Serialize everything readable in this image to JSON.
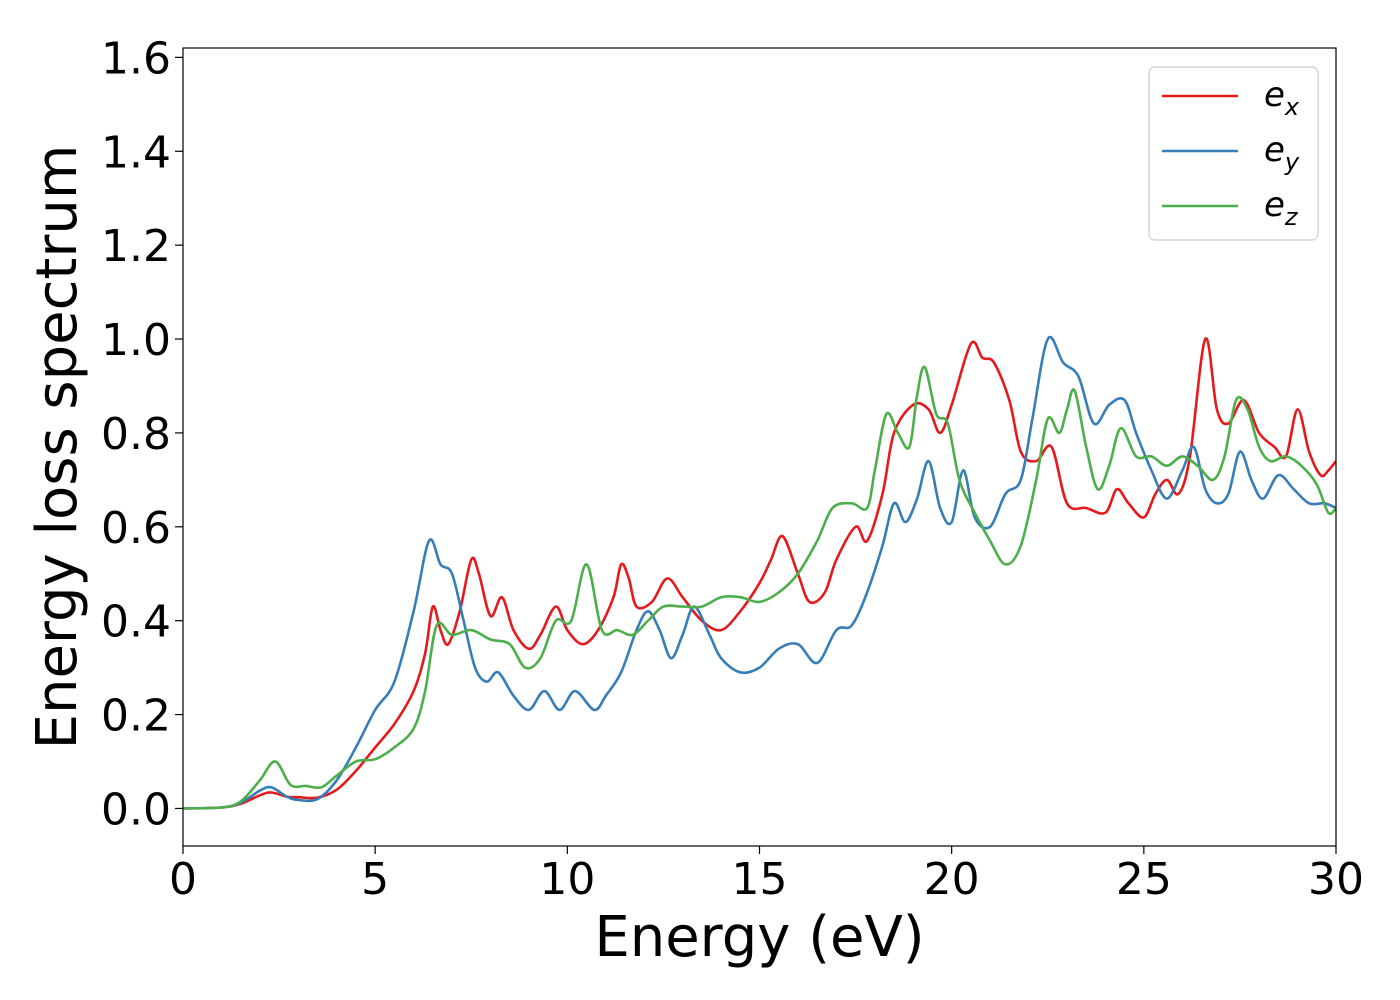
{
  "chart_data": {
    "type": "line",
    "xlabel": "Energy (eV)",
    "ylabel": "Energy loss spectrum",
    "xlim": [
      0,
      30
    ],
    "ylim": [
      -0.08,
      1.62
    ],
    "xticks": [
      0,
      5,
      10,
      15,
      20,
      25,
      30
    ],
    "xtick_labels": [
      "0",
      "5",
      "10",
      "15",
      "20",
      "25",
      "30"
    ],
    "yticks": [
      0.0,
      0.2,
      0.4,
      0.6,
      0.8,
      1.0,
      1.2,
      1.4,
      1.6
    ],
    "ytick_labels": [
      "0.0",
      "0.2",
      "0.4",
      "0.6",
      "0.8",
      "1.0",
      "1.2",
      "1.4",
      "1.6"
    ],
    "grid": false,
    "legend_position": "top-right",
    "series": [
      {
        "name": "e_x",
        "legend_base": "e",
        "legend_sub": "x",
        "color": "#e41a1c",
        "points": [
          [
            0,
            0.0
          ],
          [
            1.0,
            0.002
          ],
          [
            1.5,
            0.01
          ],
          [
            2.0,
            0.028
          ],
          [
            2.3,
            0.034
          ],
          [
            2.7,
            0.025
          ],
          [
            3.0,
            0.024
          ],
          [
            3.5,
            0.023
          ],
          [
            4.0,
            0.04
          ],
          [
            4.5,
            0.08
          ],
          [
            5.0,
            0.13
          ],
          [
            5.5,
            0.18
          ],
          [
            6.0,
            0.25
          ],
          [
            6.3,
            0.33
          ],
          [
            6.5,
            0.43
          ],
          [
            6.7,
            0.38
          ],
          [
            6.9,
            0.35
          ],
          [
            7.2,
            0.42
          ],
          [
            7.5,
            0.53
          ],
          [
            7.7,
            0.5
          ],
          [
            8.0,
            0.41
          ],
          [
            8.3,
            0.45
          ],
          [
            8.6,
            0.38
          ],
          [
            9.0,
            0.34
          ],
          [
            9.3,
            0.37
          ],
          [
            9.7,
            0.43
          ],
          [
            10.0,
            0.38
          ],
          [
            10.4,
            0.35
          ],
          [
            10.8,
            0.38
          ],
          [
            11.2,
            0.45
          ],
          [
            11.4,
            0.52
          ],
          [
            11.6,
            0.49
          ],
          [
            11.8,
            0.43
          ],
          [
            12.2,
            0.44
          ],
          [
            12.6,
            0.49
          ],
          [
            13.0,
            0.45
          ],
          [
            13.5,
            0.4
          ],
          [
            14.0,
            0.38
          ],
          [
            14.5,
            0.42
          ],
          [
            15.0,
            0.48
          ],
          [
            15.3,
            0.53
          ],
          [
            15.6,
            0.58
          ],
          [
            16.0,
            0.5
          ],
          [
            16.3,
            0.44
          ],
          [
            16.7,
            0.46
          ],
          [
            17.0,
            0.53
          ],
          [
            17.5,
            0.6
          ],
          [
            17.8,
            0.57
          ],
          [
            18.2,
            0.67
          ],
          [
            18.5,
            0.8
          ],
          [
            19.0,
            0.86
          ],
          [
            19.4,
            0.85
          ],
          [
            19.7,
            0.8
          ],
          [
            20.0,
            0.86
          ],
          [
            20.5,
            0.99
          ],
          [
            20.8,
            0.96
          ],
          [
            21.1,
            0.95
          ],
          [
            21.5,
            0.87
          ],
          [
            21.8,
            0.76
          ],
          [
            22.2,
            0.74
          ],
          [
            22.6,
            0.77
          ],
          [
            23.0,
            0.65
          ],
          [
            23.5,
            0.64
          ],
          [
            24.0,
            0.63
          ],
          [
            24.3,
            0.68
          ],
          [
            24.6,
            0.65
          ],
          [
            25.0,
            0.62
          ],
          [
            25.3,
            0.67
          ],
          [
            25.6,
            0.7
          ],
          [
            25.9,
            0.67
          ],
          [
            26.2,
            0.75
          ],
          [
            26.6,
            1.0
          ],
          [
            26.9,
            0.85
          ],
          [
            27.2,
            0.82
          ],
          [
            27.6,
            0.87
          ],
          [
            28.0,
            0.8
          ],
          [
            28.4,
            0.77
          ],
          [
            28.7,
            0.75
          ],
          [
            29.0,
            0.85
          ],
          [
            29.3,
            0.76
          ],
          [
            29.6,
            0.71
          ],
          [
            29.8,
            0.72
          ],
          [
            30.0,
            0.74
          ]
        ]
      },
      {
        "name": "e_y",
        "legend_base": "e",
        "legend_sub": "y",
        "color": "#377eb8",
        "points": [
          [
            0,
            0.0
          ],
          [
            1.0,
            0.002
          ],
          [
            1.5,
            0.012
          ],
          [
            2.0,
            0.038
          ],
          [
            2.3,
            0.045
          ],
          [
            2.7,
            0.025
          ],
          [
            3.0,
            0.018
          ],
          [
            3.5,
            0.02
          ],
          [
            4.0,
            0.06
          ],
          [
            4.5,
            0.13
          ],
          [
            5.0,
            0.21
          ],
          [
            5.5,
            0.27
          ],
          [
            6.0,
            0.42
          ],
          [
            6.4,
            0.57
          ],
          [
            6.7,
            0.52
          ],
          [
            7.0,
            0.5
          ],
          [
            7.3,
            0.4
          ],
          [
            7.6,
            0.3
          ],
          [
            7.9,
            0.27
          ],
          [
            8.2,
            0.29
          ],
          [
            8.6,
            0.24
          ],
          [
            9.0,
            0.21
          ],
          [
            9.4,
            0.25
          ],
          [
            9.8,
            0.21
          ],
          [
            10.2,
            0.25
          ],
          [
            10.7,
            0.21
          ],
          [
            11.0,
            0.24
          ],
          [
            11.4,
            0.29
          ],
          [
            11.8,
            0.38
          ],
          [
            12.1,
            0.42
          ],
          [
            12.4,
            0.38
          ],
          [
            12.7,
            0.32
          ],
          [
            13.0,
            0.37
          ],
          [
            13.3,
            0.43
          ],
          [
            13.7,
            0.37
          ],
          [
            14.0,
            0.32
          ],
          [
            14.5,
            0.29
          ],
          [
            15.0,
            0.3
          ],
          [
            15.5,
            0.34
          ],
          [
            16.0,
            0.35
          ],
          [
            16.5,
            0.31
          ],
          [
            17.0,
            0.38
          ],
          [
            17.4,
            0.39
          ],
          [
            17.8,
            0.46
          ],
          [
            18.2,
            0.56
          ],
          [
            18.5,
            0.65
          ],
          [
            18.8,
            0.61
          ],
          [
            19.1,
            0.66
          ],
          [
            19.4,
            0.74
          ],
          [
            19.7,
            0.64
          ],
          [
            20.0,
            0.61
          ],
          [
            20.3,
            0.72
          ],
          [
            20.6,
            0.62
          ],
          [
            21.0,
            0.6
          ],
          [
            21.4,
            0.67
          ],
          [
            21.8,
            0.7
          ],
          [
            22.1,
            0.83
          ],
          [
            22.5,
            1.0
          ],
          [
            22.9,
            0.95
          ],
          [
            23.3,
            0.92
          ],
          [
            23.7,
            0.82
          ],
          [
            24.1,
            0.86
          ],
          [
            24.5,
            0.87
          ],
          [
            24.8,
            0.8
          ],
          [
            25.2,
            0.72
          ],
          [
            25.6,
            0.66
          ],
          [
            26.0,
            0.72
          ],
          [
            26.3,
            0.77
          ],
          [
            26.6,
            0.68
          ],
          [
            26.9,
            0.65
          ],
          [
            27.2,
            0.67
          ],
          [
            27.5,
            0.76
          ],
          [
            27.8,
            0.7
          ],
          [
            28.1,
            0.66
          ],
          [
            28.5,
            0.71
          ],
          [
            28.9,
            0.68
          ],
          [
            29.3,
            0.65
          ],
          [
            29.7,
            0.65
          ],
          [
            30.0,
            0.64
          ]
        ]
      },
      {
        "name": "e_z",
        "legend_base": "e",
        "legend_sub": "z",
        "color": "#4daf4a",
        "points": [
          [
            0,
            0.0
          ],
          [
            1.0,
            0.002
          ],
          [
            1.5,
            0.015
          ],
          [
            2.0,
            0.06
          ],
          [
            2.4,
            0.1
          ],
          [
            2.8,
            0.05
          ],
          [
            3.2,
            0.048
          ],
          [
            3.6,
            0.045
          ],
          [
            4.0,
            0.07
          ],
          [
            4.5,
            0.1
          ],
          [
            5.0,
            0.105
          ],
          [
            5.5,
            0.13
          ],
          [
            6.0,
            0.17
          ],
          [
            6.3,
            0.25
          ],
          [
            6.6,
            0.39
          ],
          [
            7.0,
            0.37
          ],
          [
            7.5,
            0.38
          ],
          [
            8.0,
            0.36
          ],
          [
            8.5,
            0.35
          ],
          [
            8.9,
            0.3
          ],
          [
            9.3,
            0.32
          ],
          [
            9.7,
            0.4
          ],
          [
            10.1,
            0.4
          ],
          [
            10.5,
            0.52
          ],
          [
            10.9,
            0.38
          ],
          [
            11.3,
            0.38
          ],
          [
            11.7,
            0.37
          ],
          [
            12.1,
            0.4
          ],
          [
            12.5,
            0.43
          ],
          [
            13.0,
            0.43
          ],
          [
            13.5,
            0.43
          ],
          [
            14.0,
            0.45
          ],
          [
            14.5,
            0.45
          ],
          [
            15.0,
            0.44
          ],
          [
            15.5,
            0.46
          ],
          [
            16.0,
            0.5
          ],
          [
            16.5,
            0.57
          ],
          [
            16.9,
            0.64
          ],
          [
            17.4,
            0.65
          ],
          [
            17.8,
            0.64
          ],
          [
            18.0,
            0.72
          ],
          [
            18.3,
            0.84
          ],
          [
            18.6,
            0.8
          ],
          [
            18.9,
            0.77
          ],
          [
            19.1,
            0.88
          ],
          [
            19.3,
            0.94
          ],
          [
            19.6,
            0.84
          ],
          [
            19.9,
            0.82
          ],
          [
            20.2,
            0.7
          ],
          [
            20.6,
            0.63
          ],
          [
            21.0,
            0.57
          ],
          [
            21.4,
            0.52
          ],
          [
            21.8,
            0.56
          ],
          [
            22.2,
            0.7
          ],
          [
            22.5,
            0.83
          ],
          [
            22.8,
            0.8
          ],
          [
            23.0,
            0.85
          ],
          [
            23.2,
            0.89
          ],
          [
            23.5,
            0.77
          ],
          [
            23.8,
            0.68
          ],
          [
            24.1,
            0.73
          ],
          [
            24.4,
            0.81
          ],
          [
            24.8,
            0.75
          ],
          [
            25.2,
            0.75
          ],
          [
            25.6,
            0.73
          ],
          [
            26.0,
            0.75
          ],
          [
            26.4,
            0.73
          ],
          [
            26.8,
            0.7
          ],
          [
            27.1,
            0.75
          ],
          [
            27.4,
            0.87
          ],
          [
            27.7,
            0.85
          ],
          [
            28.0,
            0.77
          ],
          [
            28.3,
            0.74
          ],
          [
            28.7,
            0.75
          ],
          [
            29.1,
            0.73
          ],
          [
            29.5,
            0.69
          ],
          [
            29.8,
            0.63
          ],
          [
            30.0,
            0.64
          ]
        ]
      }
    ]
  }
}
